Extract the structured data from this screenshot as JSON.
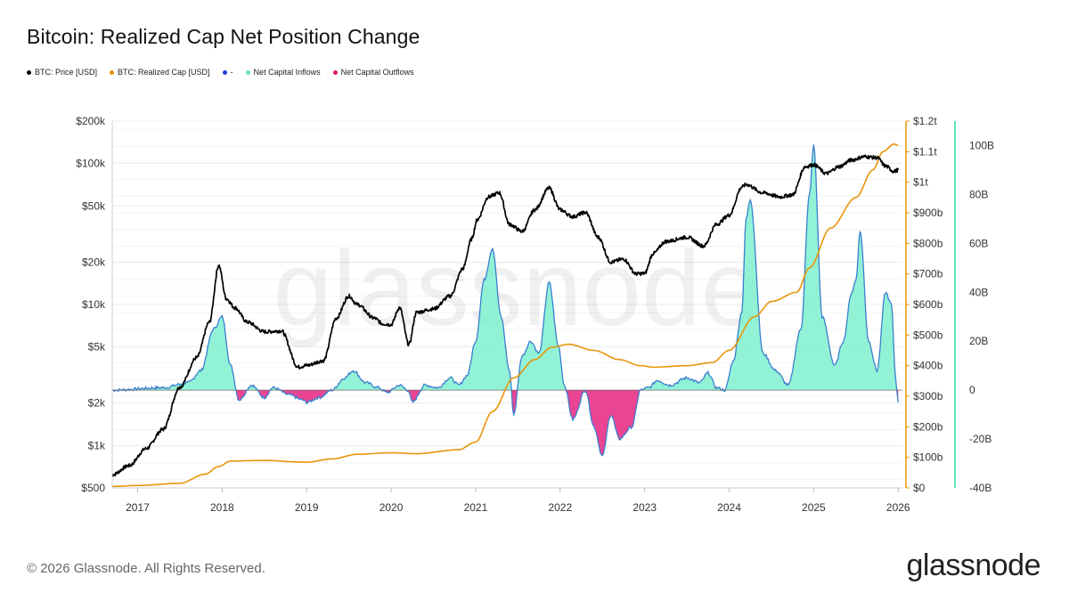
{
  "page": {
    "title": "Bitcoin: Realized Cap Net Position Change",
    "footer": "© 2026 Glassnode. All Rights Reserved.",
    "brand": "glassnode",
    "watermark": "glassnode"
  },
  "legend": [
    {
      "label": "BTC: Price [USD]",
      "color": "#000000"
    },
    {
      "label": "BTC: Realized Cap [USD]",
      "color": "#e8950a"
    },
    {
      "label": "-",
      "color": "#1f3fd6"
    },
    {
      "label": "Net Capital Inflows",
      "color": "#5fe3c0"
    },
    {
      "label": "Net Capital Outflows",
      "color": "#e0146e"
    }
  ],
  "chart_data": {
    "type": "line",
    "title": "Bitcoin: Realized Cap Net Position Change",
    "x_ticks": [
      "2017",
      "2018",
      "2019",
      "2020",
      "2021",
      "2022",
      "2023",
      "2024",
      "2025",
      "2026"
    ],
    "x_range": [
      2016.7,
      2026.05
    ],
    "axes": {
      "price": {
        "scale": "log",
        "range": [
          500,
          200000
        ],
        "ticks": [
          {
            "v": 200000,
            "label": "$200k"
          },
          {
            "v": 100000,
            "label": "$100k"
          },
          {
            "v": 50000,
            "label": "$50k"
          },
          {
            "v": 20000,
            "label": "$20k"
          },
          {
            "v": 10000,
            "label": "$10k"
          },
          {
            "v": 5000,
            "label": "$5k"
          },
          {
            "v": 2000,
            "label": "$2k"
          },
          {
            "v": 1000,
            "label": "$1k"
          },
          {
            "v": 500,
            "label": "$500"
          }
        ]
      },
      "realized_cap": {
        "scale": "linear",
        "range": [
          0,
          1200000000000.0
        ],
        "color": "#e8950a",
        "ticks": [
          {
            "v": 1200000000000.0,
            "label": "$1.2t"
          },
          {
            "v": 1100000000000.0,
            "label": "$1.1t"
          },
          {
            "v": 1000000000000.0,
            "label": "$1t"
          },
          {
            "v": 900000000000.0,
            "label": "$900b"
          },
          {
            "v": 800000000000.0,
            "label": "$800b"
          },
          {
            "v": 700000000000.0,
            "label": "$700b"
          },
          {
            "v": 600000000000.0,
            "label": "$600b"
          },
          {
            "v": 500000000000.0,
            "label": "$500b"
          },
          {
            "v": 400000000000.0,
            "label": "$400b"
          },
          {
            "v": 300000000000.0,
            "label": "$300b"
          },
          {
            "v": 200000000000.0,
            "label": "$200b"
          },
          {
            "v": 100000000000.0,
            "label": "$100b"
          },
          {
            "v": 0,
            "label": "$0"
          }
        ]
      },
      "net_position": {
        "scale": "linear",
        "range": [
          -40000000000.0,
          110000000000.0
        ],
        "color": "#5fe3c0",
        "ticks": [
          {
            "v": 100000000000.0,
            "label": "100B"
          },
          {
            "v": 80000000000.0,
            "label": "80B"
          },
          {
            "v": 60000000000.0,
            "label": "60B"
          },
          {
            "v": 40000000000.0,
            "label": "40B"
          },
          {
            "v": 20000000000.0,
            "label": "20B"
          },
          {
            "v": 0,
            "label": "0"
          },
          {
            "v": -20000000000.0,
            "label": "-20B"
          },
          {
            "v": -40000000000.0,
            "label": "-40B"
          }
        ]
      }
    },
    "series": [
      {
        "name": "BTC: Price [USD]",
        "color": "#000000",
        "axis": "price",
        "x": [
          2016.7,
          2016.9,
          2017.1,
          2017.3,
          2017.5,
          2017.7,
          2017.85,
          2017.96,
          2018.05,
          2018.15,
          2018.3,
          2018.5,
          2018.7,
          2018.9,
          2019.0,
          2019.2,
          2019.35,
          2019.5,
          2019.6,
          2019.8,
          2019.9,
          2020.0,
          2020.1,
          2020.21,
          2020.3,
          2020.5,
          2020.7,
          2020.85,
          2020.95,
          2021.02,
          2021.15,
          2021.28,
          2021.4,
          2021.55,
          2021.7,
          2021.87,
          2022.0,
          2022.15,
          2022.3,
          2022.45,
          2022.6,
          2022.75,
          2022.9,
          2023.0,
          2023.1,
          2023.25,
          2023.5,
          2023.7,
          2023.85,
          2024.0,
          2024.15,
          2024.2,
          2024.4,
          2024.6,
          2024.75,
          2024.9,
          2025.0,
          2025.15,
          2025.3,
          2025.45,
          2025.6,
          2025.75,
          2025.85,
          2025.95,
          2026.0
        ],
        "values": [
          620,
          720,
          950,
          1300,
          2600,
          4200,
          7500,
          19000,
          11000,
          9500,
          7500,
          6400,
          6500,
          3600,
          3700,
          4000,
          8000,
          11500,
          10000,
          8000,
          7300,
          7200,
          9500,
          5200,
          8800,
          9300,
          11500,
          18000,
          29000,
          40000,
          58000,
          62000,
          37000,
          33000,
          47000,
          67000,
          47000,
          42000,
          45000,
          30000,
          20000,
          21000,
          16500,
          16600,
          23000,
          28000,
          30000,
          26000,
          37000,
          43000,
          68000,
          71000,
          62000,
          58000,
          60000,
          95000,
          98000,
          85000,
          95000,
          106000,
          112000,
          110000,
          96000,
          88000,
          90000
        ]
      },
      {
        "name": "BTC: Realized Cap [USD]",
        "color": "#e8950a",
        "axis": "realized_cap",
        "x": [
          2016.7,
          2017.0,
          2017.5,
          2017.8,
          2017.96,
          2018.1,
          2018.5,
          2018.9,
          2019.0,
          2019.3,
          2019.6,
          2020.0,
          2020.3,
          2020.8,
          2021.0,
          2021.2,
          2021.45,
          2021.7,
          2021.9,
          2022.1,
          2022.4,
          2022.7,
          2022.95,
          2023.1,
          2023.5,
          2023.8,
          2024.0,
          2024.3,
          2024.5,
          2024.8,
          2024.95,
          2025.2,
          2025.5,
          2025.7,
          2025.82,
          2025.95,
          2026.0
        ],
        "values": [
          5000000000.0,
          8000000000.0,
          15000000000.0,
          45000000000.0,
          70000000000.0,
          88000000000.0,
          90000000000.0,
          85000000000.0,
          84000000000.0,
          95000000000.0,
          110000000000.0,
          115000000000.0,
          112000000000.0,
          125000000000.0,
          150000000000.0,
          250000000000.0,
          360000000000.0,
          420000000000.0,
          460000000000.0,
          470000000000.0,
          450000000000.0,
          420000000000.0,
          400000000000.0,
          395000000000.0,
          400000000000.0,
          410000000000.0,
          450000000000.0,
          560000000000.0,
          610000000000.0,
          640000000000.0,
          720000000000.0,
          850000000000.0,
          950000000000.0,
          1040000000000.0,
          1100000000000.0,
          1125000000000.0,
          1120000000000.0
        ]
      },
      {
        "name": "Net Capital Inflows / Outflows",
        "color": "#5fe3c0",
        "axis": "net_position",
        "x": [
          2016.7,
          2017.3,
          2017.6,
          2017.75,
          2017.9,
          2018.0,
          2018.1,
          2018.2,
          2018.35,
          2018.5,
          2018.6,
          2018.8,
          2018.95,
          2019.0,
          2019.15,
          2019.3,
          2019.45,
          2019.55,
          2019.7,
          2019.85,
          2019.95,
          2020.1,
          2020.2,
          2020.25,
          2020.4,
          2020.55,
          2020.7,
          2020.8,
          2020.9,
          2021.0,
          2021.1,
          2021.2,
          2021.3,
          2021.4,
          2021.45,
          2021.55,
          2021.65,
          2021.75,
          2021.87,
          2021.98,
          2022.05,
          2022.15,
          2022.3,
          2022.4,
          2022.5,
          2022.6,
          2022.7,
          2022.85,
          2022.95,
          2023.05,
          2023.15,
          2023.3,
          2023.5,
          2023.65,
          2023.75,
          2023.85,
          2023.95,
          2024.05,
          2024.15,
          2024.2,
          2024.25,
          2024.4,
          2024.55,
          2024.7,
          2024.85,
          2024.95,
          2025.0,
          2025.1,
          2025.25,
          2025.35,
          2025.45,
          2025.5,
          2025.55,
          2025.65,
          2025.75,
          2025.85,
          2025.92,
          2025.97,
          2026.0
        ],
        "values": [
          0,
          1,
          3,
          8,
          25,
          30,
          10,
          -4,
          2,
          -3,
          1,
          -2,
          -4,
          -5,
          -3,
          0,
          5,
          8,
          3,
          1,
          -1,
          2,
          0,
          -5,
          2,
          1,
          5,
          2,
          6,
          20,
          45,
          58,
          30,
          8,
          -10,
          14,
          20,
          15,
          44,
          18,
          2,
          -12,
          0,
          -15,
          -27,
          -10,
          -20,
          -15,
          0,
          1,
          4,
          2,
          5,
          3,
          7,
          1,
          0,
          12,
          32,
          70,
          78,
          15,
          8,
          2,
          25,
          80,
          100,
          30,
          10,
          20,
          40,
          45,
          65,
          20,
          8,
          40,
          35,
          5,
          -5
        ]
      }
    ]
  }
}
